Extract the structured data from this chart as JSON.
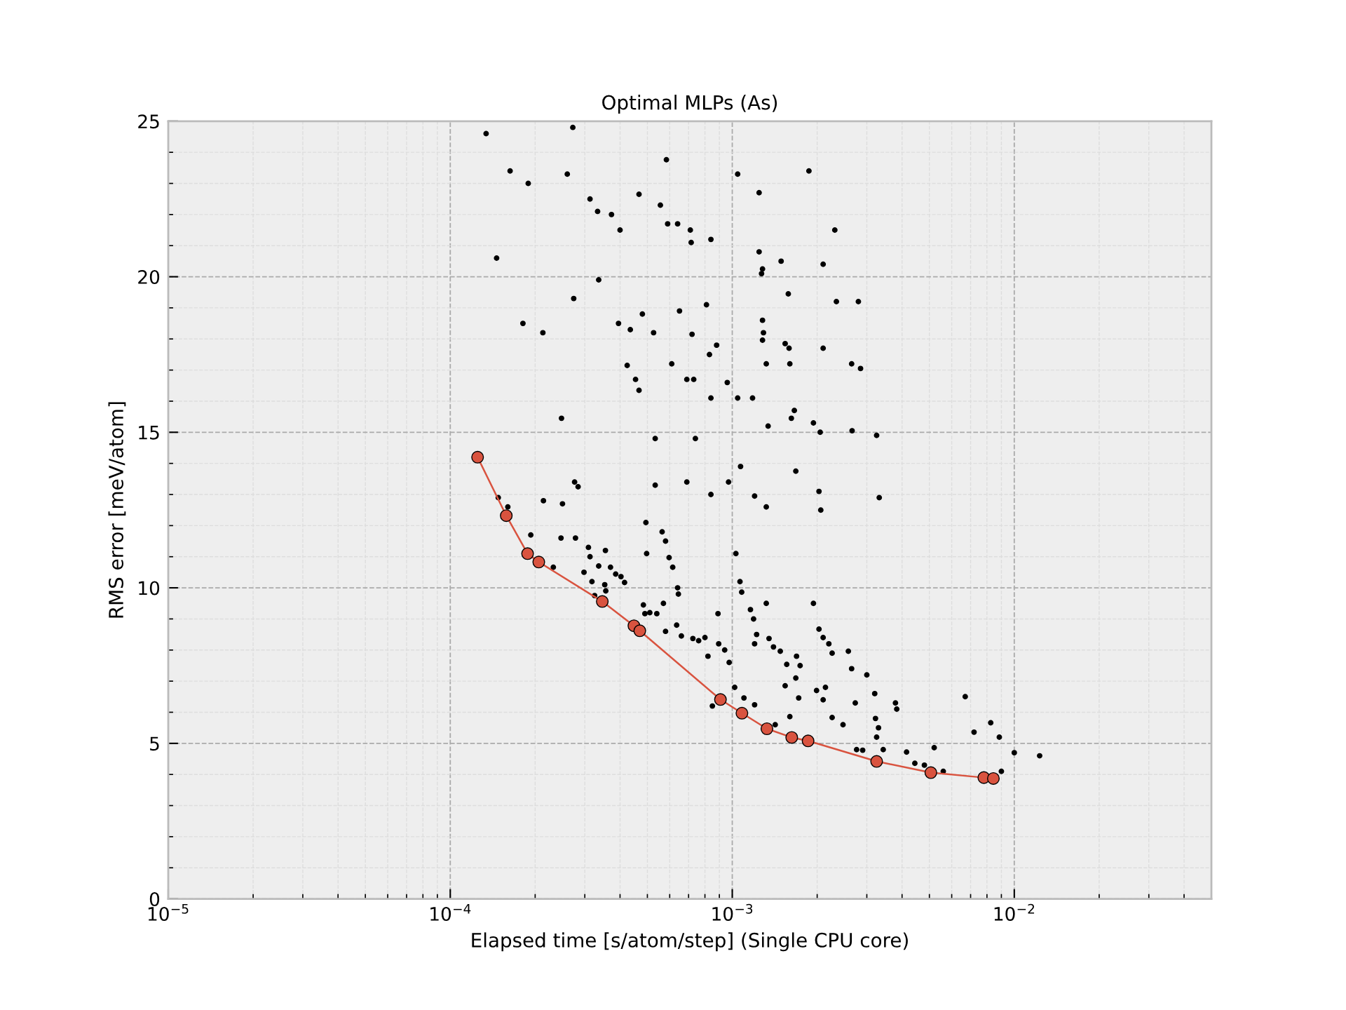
{
  "chart_data": {
    "type": "scatter",
    "title": "Optimal MLPs (As)",
    "xlabel": "Elapsed time [s/atom/step] (Single CPU core)",
    "ylabel": "RMS error [meV/atom]",
    "log": "x",
    "grid": true,
    "xlim": [
      1e-05,
      0.05
    ],
    "ylim": [
      0,
      25
    ],
    "xticks": [
      {
        "value": 1e-05,
        "label": "10$^{−5}$"
      },
      {
        "value": 0.0001,
        "label": "10$^{−4}$"
      },
      {
        "value": 0.001,
        "label": "10$^{−3}$"
      },
      {
        "value": 0.01,
        "label": "10$^{−2}$"
      }
    ],
    "yticks": [
      0,
      5,
      10,
      15,
      20,
      25
    ],
    "series": [
      {
        "color": "#000000",
        "marker": "circle",
        "x": [
          0.000134,
          0.000272,
          0.000163,
          0.000189,
          0.000146,
          0.00026,
          0.000313,
          0.000333,
          0.000373,
          0.0004,
          0.000467,
          0.000556,
          0.000584,
          0.00059,
          0.00064,
          0.00071,
          0.000715,
          0.00084,
          0.001045,
          0.001245,
          0.00187,
          0.001245,
          0.00128,
          0.00127,
          0.00149,
          0.00231,
          0.0021,
          0.00158,
          0.00234,
          0.0028,
          0.000181,
          0.000213,
          0.000274,
          0.000336,
          0.000395,
          0.000435,
          0.00048,
          0.000526,
          0.00065,
          0.00072,
          0.00081,
          0.00088,
          0.00083,
          0.00128,
          0.00129,
          0.00128,
          0.00154,
          0.00159,
          0.0021,
          0.00265,
          0.00285,
          0.000424,
          0.000454,
          0.000467,
          0.00061,
          0.00069,
          0.00073,
          0.00096,
          0.00084,
          0.001045,
          0.00118,
          0.00132,
          0.0016,
          0.00166,
          0.00162,
          0.00134,
          0.00194,
          0.00205,
          0.00266,
          0.00325,
          0.000248,
          0.000533,
          0.00074,
          0.00107,
          0.00097,
          0.00084,
          0.00069,
          0.000533,
          0.0012,
          0.00132,
          0.00168,
          0.00203,
          0.00206,
          0.00332,
          0.000276,
          0.000284,
          0.00025,
          0.000214,
          0.000148,
          0.00016,
          0.000247,
          0.000193,
          0.000278,
          0.000309,
          0.000355,
          0.000494,
          0.000564,
          0.00058,
          0.000497,
          0.000597,
          0.000615,
          0.000313,
          0.000232,
          0.000336,
          0.00037,
          0.000386,
          0.000403,
          0.000415,
          0.000353,
          0.000298,
          0.000318,
          0.000325,
          0.000356,
          0.000484,
          0.00049,
          0.00051,
          0.00054,
          0.00064,
          0.000644,
          0.00057,
          0.00058,
          0.000635,
          0.00066,
          0.000725,
          0.00076,
          0.0008,
          0.00082,
          0.00089,
          0.000895,
          0.00094,
          0.000975,
          0.00103,
          0.001065,
          0.00108,
          0.00116,
          0.00119,
          0.00122,
          0.0012,
          0.00132,
          0.00135,
          0.0014,
          0.00148,
          0.00156,
          0.00169,
          0.00174,
          0.00168,
          0.00154,
          0.0016,
          0.00172,
          0.00194,
          0.00203,
          0.0021,
          0.0022,
          0.00226,
          0.00199,
          0.0021,
          0.00214,
          0.00226,
          0.00258,
          0.00265,
          0.00273,
          0.003,
          0.0032,
          0.00322,
          0.00325,
          0.0033,
          0.00343,
          0.00379,
          0.00383,
          0.00415,
          0.00444,
          0.0052,
          0.0056,
          0.0067,
          0.0072,
          0.00825,
          0.00885,
          0.01,
          0.0123,
          0.00276,
          0.00247,
          0.0029,
          0.0011,
          0.0012,
          0.00142,
          0.00085,
          0.00102,
          0.0048,
          0.009
        ],
        "values": [
          24.6,
          24.8,
          23.4,
          23.0,
          20.6,
          23.3,
          22.5,
          22.1,
          22.0,
          21.5,
          22.65,
          22.3,
          23.76,
          21.7,
          21.7,
          21.5,
          21.1,
          21.2,
          23.3,
          22.7,
          23.4,
          20.8,
          20.25,
          20.1,
          20.5,
          21.5,
          20.4,
          19.45,
          19.2,
          19.2,
          18.5,
          18.2,
          19.3,
          19.9,
          18.5,
          18.3,
          18.8,
          18.2,
          18.9,
          18.15,
          19.1,
          17.8,
          17.5,
          18.6,
          18.2,
          17.96,
          17.85,
          17.7,
          17.7,
          17.2,
          17.05,
          17.15,
          16.7,
          16.35,
          17.2,
          16.7,
          16.7,
          16.6,
          16.1,
          16.1,
          16.1,
          17.2,
          17.2,
          15.7,
          15.45,
          15.2,
          15.3,
          15.0,
          15.05,
          14.9,
          15.45,
          14.8,
          14.8,
          13.9,
          13.4,
          13.0,
          13.4,
          13.3,
          12.95,
          12.6,
          13.75,
          13.1,
          12.5,
          12.9,
          13.4,
          13.25,
          12.7,
          12.8,
          12.9,
          12.6,
          11.6,
          11.7,
          11.6,
          11.3,
          11.2,
          12.1,
          11.8,
          11.5,
          11.1,
          10.97,
          10.66,
          11.0,
          10.66,
          10.7,
          10.66,
          10.44,
          10.36,
          10.17,
          10.1,
          10.5,
          10.2,
          9.75,
          9.9,
          9.45,
          9.17,
          9.2,
          9.17,
          10.0,
          9.8,
          9.5,
          8.6,
          8.8,
          8.45,
          8.37,
          8.3,
          8.4,
          7.8,
          9.17,
          8.2,
          8.0,
          7.6,
          11.1,
          10.2,
          9.86,
          9.3,
          9.0,
          8.5,
          8.2,
          9.5,
          8.37,
          8.1,
          7.96,
          7.54,
          7.8,
          7.5,
          7.1,
          6.85,
          5.86,
          6.46,
          9.5,
          8.67,
          8.4,
          8.2,
          7.9,
          6.7,
          6.4,
          6.8,
          5.83,
          7.96,
          7.4,
          6.3,
          7.2,
          6.6,
          5.8,
          5.2,
          5.5,
          4.8,
          6.3,
          6.1,
          4.72,
          4.36,
          4.86,
          4.1,
          6.5,
          5.36,
          5.66,
          5.2,
          4.7,
          4.6,
          4.8,
          5.6,
          4.78,
          6.46,
          6.24,
          5.6,
          6.2,
          6.8,
          4.3,
          4.1
        ]
      },
      {
        "type": "line",
        "color": "#d9533f",
        "marker": "circle",
        "x": [
          0.000125,
          0.000158,
          0.000188,
          0.000206,
          0.000346,
          0.000448,
          0.00047,
          0.000908,
          0.001082,
          0.001327,
          0.001625,
          0.001857,
          0.00325,
          0.00506,
          0.0078,
          0.00843
        ],
        "values": [
          14.2,
          12.32,
          11.1,
          10.83,
          9.56,
          8.78,
          8.62,
          6.41,
          5.97,
          5.47,
          5.19,
          5.08,
          4.42,
          4.06,
          3.9,
          3.87
        ]
      }
    ]
  }
}
